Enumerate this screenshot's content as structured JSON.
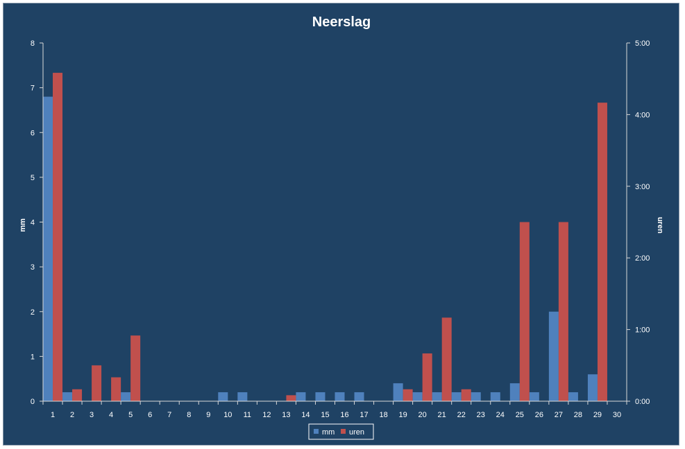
{
  "colors": {
    "background": "#1f4264",
    "mm": "#4f81bd",
    "uren": "#c0504d",
    "axis": "#d9d9d9"
  },
  "chart_data": {
    "type": "bar",
    "title": "Neerslag",
    "ylabel": "mm",
    "y2label": "uren",
    "categories": [
      "1",
      "2",
      "3",
      "4",
      "5",
      "6",
      "7",
      "8",
      "9",
      "10",
      "11",
      "12",
      "13",
      "14",
      "15",
      "16",
      "17",
      "18",
      "19",
      "20",
      "21",
      "22",
      "23",
      "24",
      "25",
      "26",
      "27",
      "28",
      "29",
      "30"
    ],
    "ylim": [
      0,
      8
    ],
    "y2lim_minutes": [
      0,
      300
    ],
    "yticks": [
      "0",
      "1",
      "2",
      "3",
      "4",
      "5",
      "6",
      "7",
      "8"
    ],
    "y2ticks": [
      "0:00",
      "1:00",
      "2:00",
      "3:00",
      "4:00",
      "5:00"
    ],
    "grid": false,
    "legend": "bottom",
    "series": [
      {
        "name": "mm",
        "axis": "left",
        "values": [
          6.8,
          0.2,
          0,
          0,
          0.2,
          0,
          0,
          0,
          0,
          0.2,
          0.2,
          0,
          0,
          0.2,
          0.2,
          0.2,
          0.2,
          0,
          0.4,
          0.2,
          0.2,
          0.2,
          0.2,
          0.2,
          0.4,
          0.2,
          2.0,
          0.2,
          0.6,
          0
        ]
      },
      {
        "name": "uren",
        "axis": "right",
        "values_minutes": [
          275,
          10,
          30,
          20,
          55,
          0,
          0,
          0,
          0,
          0,
          0,
          0,
          5,
          0,
          0,
          0,
          0,
          0,
          10,
          40,
          70,
          10,
          0,
          0,
          150,
          0,
          150,
          0,
          250,
          0
        ]
      }
    ]
  }
}
